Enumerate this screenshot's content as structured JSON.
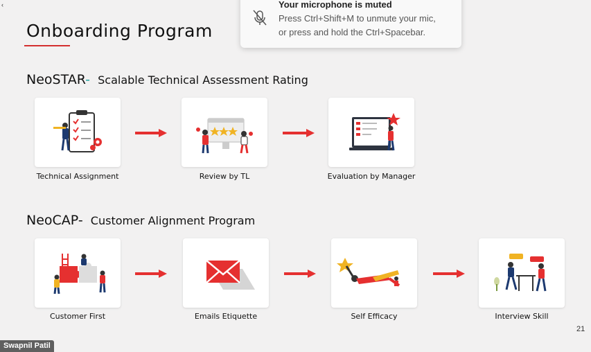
{
  "slide": {
    "title": "Onboarding Program",
    "page_number": "21"
  },
  "neostar": {
    "brand": "NeoSTAR",
    "dash": "-",
    "subtitle": "Scalable Technical Assessment Rating",
    "steps": [
      {
        "label": "Technical Assignment",
        "icon": "clipboard-checklist-icon"
      },
      {
        "label": "Review by TL",
        "icon": "review-rating-icon"
      },
      {
        "label": "Evaluation by Manager",
        "icon": "evaluation-dashboard-icon"
      }
    ]
  },
  "neocap": {
    "brand": "NeoCAP",
    "dash": "-",
    "subtitle": "Customer Alignment Program",
    "steps": [
      {
        "label": "Customer First",
        "icon": "puzzle-team-icon"
      },
      {
        "label": "Emails Etiquette",
        "icon": "envelope-icon"
      },
      {
        "label": "Self Efficacy",
        "icon": "flying-superhero-icon"
      },
      {
        "label": "Interview Skill",
        "icon": "interview-table-icon"
      }
    ]
  },
  "notification": {
    "icon": "microphone-muted-icon",
    "title": "Your microphone is muted",
    "line1": "Press Ctrl+Shift+M to unmute your mic,",
    "line2": "or press and hold the Ctrl+Spacebar."
  },
  "participant": {
    "name": "Swapnil Patil"
  },
  "colors": {
    "accent_red": "#e53030",
    "teal": "#1fa3a0",
    "background": "#f2f1f1"
  }
}
